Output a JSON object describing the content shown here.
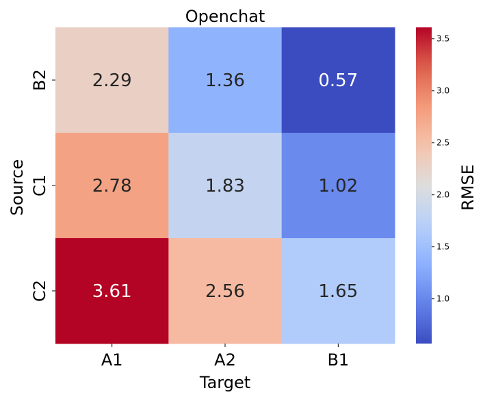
{
  "chart_data": {
    "type": "heatmap",
    "title": "Openchat",
    "xlabel": "Target",
    "ylabel": "Source",
    "x_categories": [
      "A1",
      "A2",
      "B1"
    ],
    "y_categories": [
      "B2",
      "C1",
      "C2"
    ],
    "values": [
      [
        2.29,
        1.36,
        0.57
      ],
      [
        2.78,
        1.83,
        1.02
      ],
      [
        3.61,
        2.56,
        1.65
      ]
    ],
    "value_labels": [
      [
        "2.29",
        "1.36",
        "0.57"
      ],
      [
        "2.78",
        "1.83",
        "1.02"
      ],
      [
        "3.61",
        "2.56",
        "1.65"
      ]
    ],
    "colormap": "coolwarm",
    "vmin": 0.57,
    "vmax": 3.61,
    "colorbar": {
      "label": "RMSE",
      "ticks": [
        1.0,
        1.5,
        2.0,
        2.5,
        3.0,
        3.5
      ],
      "tick_labels": [
        "1.0",
        "1.5",
        "2.0",
        "2.5",
        "3.0",
        "3.5"
      ]
    }
  }
}
